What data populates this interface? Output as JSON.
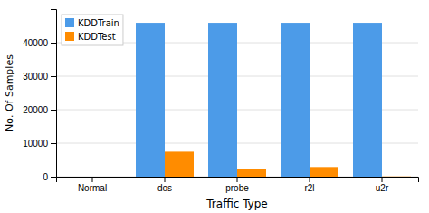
{
  "chart_data": {
    "type": "bar",
    "categories": [
      "Normal",
      "dos",
      "probe",
      "r2l",
      "u2r"
    ],
    "series": [
      {
        "name": "KDDTrain",
        "color": "#4c9be8",
        "values": [
          0,
          45927,
          45927,
          45927,
          45927
        ]
      },
      {
        "name": "KDDTest",
        "color": "#ff8c00",
        "values": [
          0,
          7458,
          2421,
          2887,
          70
        ]
      }
    ],
    "xlabel": "Traffic Type",
    "ylabel": "No. Of Samples",
    "ylim": [
      0,
      50000
    ],
    "yticks": [
      0,
      10000,
      20000,
      30000,
      40000
    ],
    "grid": true,
    "legend": "upper left"
  }
}
